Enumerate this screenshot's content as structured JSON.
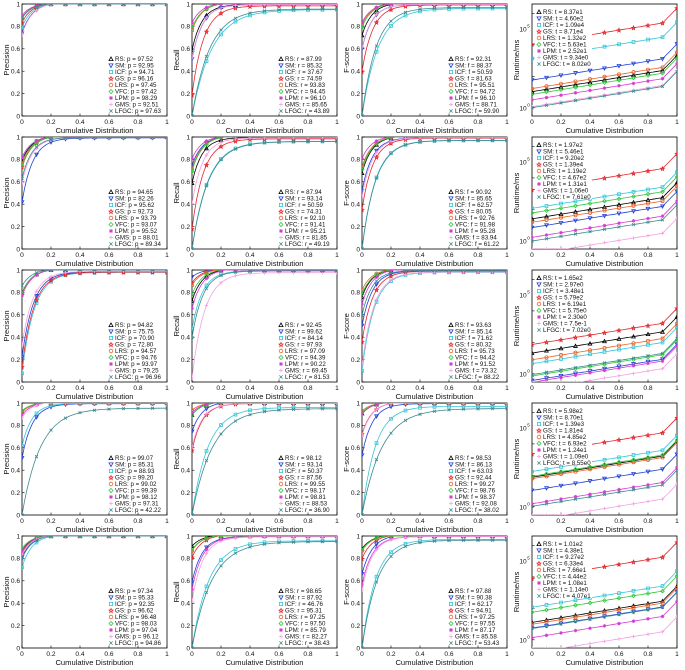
{
  "figure": {
    "shared_x_label": "Cumulative Distribution",
    "method_colors": {
      "RS": "#000000",
      "SM": "#1f3fd6",
      "ICF": "#34c6d8",
      "GS": "#e4262c",
      "LRS": "#e8642c",
      "VFC": "#2fc93a",
      "LPM": "#d63ad3",
      "GMS": "#f4a0e0",
      "LFGC": "#3b8a8f"
    },
    "method_icons": {
      "RS": "triangle-up-icon",
      "SM": "triangle-down-icon",
      "ICF": "square-icon",
      "GS": "star-icon",
      "LRS": "circle-icon",
      "VFC": "diamond-icon",
      "LPM": "asterisk-icon",
      "GMS": "plus-icon",
      "LFGC": "cross-icon"
    }
  },
  "chart_data": [
    {
      "row": 1,
      "col": 1,
      "type": "line",
      "ylabel": "Precision",
      "xlabel": "Cumulative Distribution",
      "ylim": [
        0,
        1
      ],
      "xlim": [
        0,
        1
      ],
      "scale": "linear",
      "legend_position": "bottom-right",
      "legend": [
        "RS: p = 97.52",
        "SM: p = 92.95",
        "ICF: p = 94.71",
        "GS: p = 96.16",
        "LRS: p = 97.45",
        "VFC: p = 97.42",
        "LPM: p = 98.29",
        "GMS: p = 92.51",
        "LFGC: p = 97.63"
      ]
    },
    {
      "row": 1,
      "col": 2,
      "type": "line",
      "ylabel": "Recall",
      "xlabel": "Cumulative Distribution",
      "ylim": [
        0,
        1
      ],
      "xlim": [
        0,
        1
      ],
      "scale": "linear",
      "legend_position": "bottom-right",
      "legend": [
        "RS: r = 87.99",
        "SM: r = 85.32",
        "ICF: r = 37.67",
        "GS: r = 74.59",
        "LRS: r = 93.83",
        "VFC: r = 94.45",
        "LPM: r = 96.10",
        "GMS: r = 85.65",
        "LFGC: r = 43.89"
      ]
    },
    {
      "row": 1,
      "col": 3,
      "type": "line",
      "ylabel": "F-score",
      "xlabel": "Cumulative Distribution",
      "ylim": [
        0,
        1
      ],
      "xlim": [
        0,
        1
      ],
      "scale": "linear",
      "legend_position": "bottom-right",
      "legend": [
        "RS: f = 92.31",
        "SM: f = 88.37",
        "ICF: f = 50.59",
        "GS: f = 81.63",
        "LRS: f = 95.51",
        "VFC: f = 94.72",
        "LPM: f = 96.10",
        "GMS: f = 88.71",
        "LFGC: f = 59.90"
      ]
    },
    {
      "row": 1,
      "col": 4,
      "type": "line",
      "ylabel": "Runtime/ms",
      "xlabel": "Cumulative Distribution",
      "ylim": [
        0.3,
        4000000
      ],
      "xlim": [
        0,
        1
      ],
      "scale": "log",
      "legend_position": "top-left",
      "legend": [
        "RS: t = 8.37e1",
        "SM: t = 4.60e2",
        "ICF: t = 1.09e4",
        "GS: t = 8.71e4",
        "LRS: t = 1.32e2",
        "VFC: t = 5.63e1",
        "LPM: t = 2.52e1",
        "GMS: t = 9.34e0",
        "LFGC: t = 8.02e0"
      ]
    },
    {
      "row": 2,
      "col": 1,
      "type": "line",
      "ylabel": "Precision",
      "xlabel": "Cumulative Distribution",
      "ylim": [
        0,
        1
      ],
      "xlim": [
        0,
        1
      ],
      "scale": "linear",
      "legend_position": "bottom-right",
      "legend": [
        "RS: p = 94.65",
        "SM: p = 82.26",
        "ICF: p = 95.62",
        "GS: p = 92.73",
        "LRS: p = 93.79",
        "VFC: p = 93.07",
        "LPM: p = 95.52",
        "GMS: p = 88.01",
        "LFGC: p = 89.34"
      ]
    },
    {
      "row": 2,
      "col": 2,
      "type": "line",
      "ylabel": "Recall",
      "xlabel": "Cumulative Distribution",
      "ylim": [
        0,
        1
      ],
      "xlim": [
        0,
        1
      ],
      "scale": "linear",
      "legend_position": "bottom-right",
      "legend": [
        "RS: r = 87.94",
        "SM: r = 93.14",
        "ICF: r = 50.59",
        "GS: r = 74.31",
        "LRS: r = 92.10",
        "VFC: r = 91.41",
        "LPM: r = 95.21",
        "GMS: r = 81.85",
        "LFGC: r = 49.19"
      ]
    },
    {
      "row": 2,
      "col": 3,
      "type": "line",
      "ylabel": "F-score",
      "xlabel": "Cumulative Distribution",
      "ylim": [
        0,
        1
      ],
      "xlim": [
        0,
        1
      ],
      "scale": "linear",
      "legend_position": "bottom-right",
      "legend": [
        "RS: f = 90.92",
        "SM: f = 85.65",
        "ICF: f = 62.57",
        "GS: f = 80.05",
        "LRS: f = 92.76",
        "VFC: f = 91.98",
        "LPM: f = 95.28",
        "GMS: f = 83.94",
        "LFGC: f = 61.22"
      ]
    },
    {
      "row": 2,
      "col": 4,
      "type": "line",
      "ylabel": "Runtime/ms",
      "xlabel": "Cumulative Distribution",
      "ylim": [
        0.3,
        4000000
      ],
      "xlim": [
        0,
        1
      ],
      "scale": "log",
      "legend_position": "top-left",
      "legend": [
        "RS: t = 1.97e2",
        "SM: t = 5.46e1",
        "ICF: t = 9.20e2",
        "GS: t = 1.39e4",
        "LRS: t = 1.19e2",
        "VFC: t = 4.67e2",
        "LPM: t = 1.31e1",
        "GMS: t = 1.06e0",
        "LFGC: t = 7.61e0"
      ]
    },
    {
      "row": 3,
      "col": 1,
      "type": "line",
      "ylabel": "Precision",
      "xlabel": "Cumulative Distribution",
      "ylim": [
        0,
        1
      ],
      "xlim": [
        0,
        1
      ],
      "scale": "linear",
      "legend_position": "bottom-right",
      "legend": [
        "RS: p = 94.82",
        "SM: p = 75.75",
        "ICF: p = 70.90",
        "GS: p = 72.80",
        "LRS: p = 94.57",
        "VFC: p = 94.76",
        "LPM: p = 93.97",
        "GMS: p = 79.25",
        "LFGC: p = 96.96"
      ]
    },
    {
      "row": 3,
      "col": 2,
      "type": "line",
      "ylabel": "Recall",
      "xlabel": "Cumulative Distribution",
      "ylim": [
        0,
        1
      ],
      "xlim": [
        0,
        1
      ],
      "scale": "linear",
      "legend_position": "bottom-right",
      "legend": [
        "RS: r = 92.45",
        "SM: r = 99.62",
        "ICF: r = 84.14",
        "GS: r = 97.93",
        "LRS: r = 97.09",
        "VFC: r = 94.39",
        "LPM: r = 90.22",
        "GMS: r = 69.45",
        "LFGC: r = 81.53"
      ]
    },
    {
      "row": 3,
      "col": 3,
      "type": "line",
      "ylabel": "F-score",
      "xlabel": "Cumulative Distribution",
      "ylim": [
        0,
        1
      ],
      "xlim": [
        0,
        1
      ],
      "scale": "linear",
      "legend_position": "bottom-right",
      "legend": [
        "RS: f = 93.63",
        "SM: f = 85.14",
        "ICF: f = 71.62",
        "GS: f = 80.32",
        "LRS: f = 95.73",
        "VFC: f = 94.42",
        "LPM: f = 91.52",
        "GMS: f = 73.32",
        "LFGC: f = 88.22"
      ]
    },
    {
      "row": 3,
      "col": 4,
      "type": "line",
      "ylabel": "Runtime/ms",
      "xlabel": "Cumulative Distribution",
      "ylim": [
        0.3,
        4000000
      ],
      "xlim": [
        0,
        1
      ],
      "scale": "log",
      "legend_position": "top-left",
      "legend": [
        "RS: t = 1.65e2",
        "SM: t = 2.97e0",
        "ICF: t = 3.48e1",
        "GS: t = 5.79e2",
        "LRS: t = 6.19e1",
        "VFC: t = 5.75e0",
        "LPM: t = 2.30e0",
        "GMS: t = 7.5e-1",
        "LFGC: t = 7.02e0"
      ]
    },
    {
      "row": 4,
      "col": 1,
      "type": "line",
      "ylabel": "Precision",
      "xlabel": "Cumulative Distribution",
      "ylim": [
        0,
        1
      ],
      "xlim": [
        0,
        1
      ],
      "scale": "linear",
      "legend_position": "bottom-right",
      "legend": [
        "RS: p = 99.07",
        "SM: p = 85.31",
        "ICF: p = 88.93",
        "GS: p = 99.20",
        "LRS: p = 99.02",
        "VFC: p = 99.39",
        "LPM: p = 98.12",
        "GMS: p = 97.31",
        "LFGC: p = 42.22"
      ]
    },
    {
      "row": 4,
      "col": 2,
      "type": "line",
      "ylabel": "Recall",
      "xlabel": "Cumulative Distribution",
      "ylim": [
        0,
        1
      ],
      "xlim": [
        0,
        1
      ],
      "scale": "linear",
      "legend_position": "bottom-right",
      "legend": [
        "RS: r = 98.12",
        "SM: r = 93.14",
        "ICF: r = 50.37",
        "GS: r = 87.56",
        "LRS: r = 99.55",
        "VFC: r = 98.17",
        "LPM: r = 98.81",
        "GMS: r = 88.53",
        "LFGC: r = 36.90"
      ]
    },
    {
      "row": 4,
      "col": 3,
      "type": "line",
      "ylabel": "F-score",
      "xlabel": "Cumulative Distribution",
      "ylim": [
        0,
        1
      ],
      "xlim": [
        0,
        1
      ],
      "scale": "linear",
      "legend_position": "bottom-right",
      "legend": [
        "RS: f = 98.53",
        "SM: f = 86.13",
        "ICF: f = 63.03",
        "GS: f = 92.44",
        "LRS: f = 99.27",
        "VFC: f = 98.76",
        "LPM: f = 98.37",
        "GMS: f = 92.08",
        "LFGC: f = 38.02"
      ]
    },
    {
      "row": 4,
      "col": 4,
      "type": "line",
      "ylabel": "Runtime/ms",
      "xlabel": "Cumulative Distribution",
      "ylim": [
        0.3,
        4000000
      ],
      "xlim": [
        0,
        1
      ],
      "scale": "log",
      "legend_position": "top-left",
      "legend": [
        "RS: t = 5.98e2",
        "SM: t = 8.70e1",
        "ICF: t = 1.39e3",
        "GS: t = 1.81e4",
        "LRS: t = 4.85e2",
        "VFC: t = 6.93e2",
        "LPM: t = 1.24e1",
        "GMS: t = 1.09e0",
        "LFGC: t = 8.55e0"
      ]
    },
    {
      "row": 5,
      "col": 1,
      "type": "line",
      "ylabel": "Precision",
      "xlabel": "Cumulative Distribution",
      "ylim": [
        0,
        1
      ],
      "xlim": [
        0,
        1
      ],
      "scale": "linear",
      "legend_position": "bottom-right",
      "legend": [
        "RS: p = 97.34",
        "SM: p = 95.33",
        "ICF: p = 92.35",
        "GS: p = 96.62",
        "LRS: p = 96.48",
        "VFC: p = 98.03",
        "LPM: p = 97.04",
        "GMS: p = 96.12",
        "LFGC: p = 94.86"
      ]
    },
    {
      "row": 5,
      "col": 2,
      "type": "line",
      "ylabel": "Recall",
      "xlabel": "Cumulative Distribution",
      "ylim": [
        0,
        1
      ],
      "xlim": [
        0,
        1
      ],
      "scale": "linear",
      "legend_position": "bottom-right",
      "legend": [
        "RS: r = 98.65",
        "SM: r = 87.92",
        "ICF: r = 46.76",
        "GS: r = 95.31",
        "LRS: r = 97.25",
        "VFC: r = 97.50",
        "LPM: r = 85.79",
        "GMS: r = 82.27",
        "LFGC: r = 38.43"
      ]
    },
    {
      "row": 5,
      "col": 3,
      "type": "line",
      "ylabel": "F-score",
      "xlabel": "Cumulative Distribution",
      "ylim": [
        0,
        1
      ],
      "xlim": [
        0,
        1
      ],
      "scale": "linear",
      "legend_position": "bottom-right",
      "legend": [
        "RS: f = 97.88",
        "SM: f = 90.38",
        "ICF: f = 62.17",
        "GS: f = 94.91",
        "LRS: f = 97.25",
        "VFC: f = 97.55",
        "LPM: f = 87.17",
        "GMS: f = 85.58",
        "LFGC: f = 53.43"
      ]
    },
    {
      "row": 5,
      "col": 4,
      "type": "line",
      "ylabel": "Runtime/ms",
      "xlabel": "Cumulative Distribution",
      "ylim": [
        0.3,
        4000000
      ],
      "xlim": [
        0,
        1
      ],
      "scale": "log",
      "legend_position": "top-left",
      "legend": [
        "RS: t = 1.01e2",
        "SM: t = 4.38e1",
        "ICF: t = 9.27e2",
        "GS: t = 6.33e4",
        "LRS: t = 7.66e1",
        "VFC: t = 4.44e2",
        "LPM: t = 1.08e1",
        "GMS: t = 1.14e0",
        "LFGC: t = 4.07e1"
      ]
    }
  ]
}
